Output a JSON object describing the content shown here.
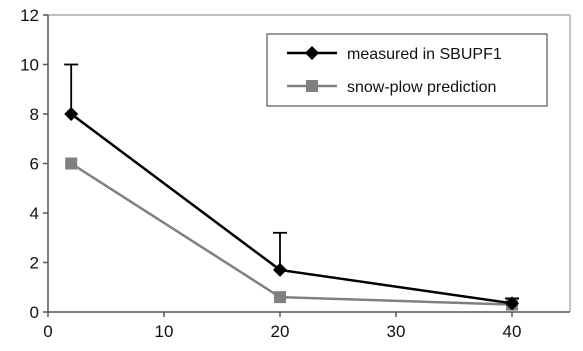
{
  "chart_data": {
    "type": "line",
    "title": "",
    "xlabel": "",
    "ylabel": "",
    "xlim": [
      0,
      45
    ],
    "ylim": [
      0,
      12
    ],
    "x_ticks": [
      0,
      10,
      20,
      30,
      40
    ],
    "y_ticks": [
      0,
      2,
      4,
      6,
      8,
      10,
      12
    ],
    "grid": false,
    "legend_position": "top-right",
    "series": [
      {
        "name": "measured in SBUPF1",
        "color": "#000000",
        "marker": "diamond",
        "points": [
          {
            "x": 2,
            "y": 8.0,
            "err_plus": 2.0
          },
          {
            "x": 20,
            "y": 1.7,
            "err_plus": 1.5
          },
          {
            "x": 40,
            "y": 0.35,
            "err_plus": 0.2
          }
        ]
      },
      {
        "name": "snow-plow prediction",
        "color": "#808080",
        "marker": "square",
        "points": [
          {
            "x": 2,
            "y": 6.0
          },
          {
            "x": 20,
            "y": 0.6
          },
          {
            "x": 40,
            "y": 0.3
          }
        ]
      }
    ]
  }
}
